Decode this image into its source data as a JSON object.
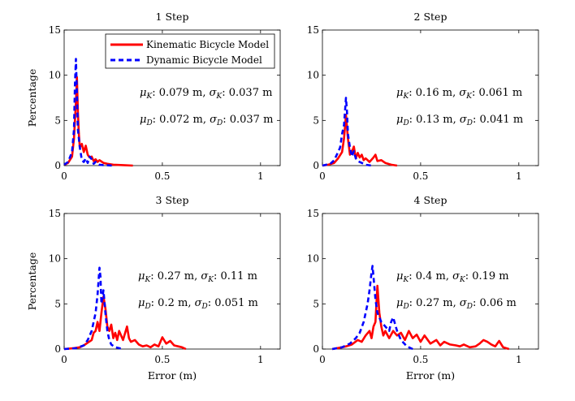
{
  "chart_data": [
    {
      "type": "line",
      "title": "1 Step",
      "xlabel": "",
      "ylabel": "Percentage",
      "xlim": [
        0,
        1.1
      ],
      "ylim": [
        0,
        15
      ],
      "x_ticks": [
        "0",
        "0.5",
        "1"
      ],
      "y_ticks": [
        "0",
        "5",
        "10",
        "15"
      ],
      "legend": {
        "placement": "top-right",
        "entries": [
          "Kinematic Bicycle Model",
          "Dynamic Bicycle Model"
        ]
      },
      "annotations": [
        {
          "sym": "μ",
          "sub": "K",
          "mid": ": 0.079 m, ",
          "sym2": "σ",
          "sub2": "K",
          "end": ": 0.037 m"
        },
        {
          "sym": "μ",
          "sub": "D",
          "mid": ": 0.072 m, ",
          "sym2": "σ",
          "sub2": "D",
          "end": ": 0.037 m"
        }
      ],
      "series": [
        {
          "name": "Kinematic Bicycle Model",
          "style": "solid",
          "color": "#ff0000",
          "x": [
            0.0,
            0.02,
            0.04,
            0.05,
            0.06,
            0.065,
            0.07,
            0.075,
            0.08,
            0.09,
            0.1,
            0.11,
            0.12,
            0.13,
            0.14,
            0.15,
            0.16,
            0.17,
            0.18,
            0.2,
            0.22,
            0.25,
            0.3,
            0.35
          ],
          "y": [
            0.1,
            0.3,
            1.0,
            3.0,
            7.0,
            9.8,
            6.0,
            3.5,
            2.0,
            2.4,
            1.5,
            2.2,
            1.2,
            0.9,
            1.0,
            0.5,
            0.7,
            0.4,
            0.6,
            0.3,
            0.2,
            0.1,
            0.05,
            0.0
          ]
        },
        {
          "name": "Dynamic Bicycle Model",
          "style": "dashed",
          "color": "#0000ff",
          "x": [
            0.0,
            0.02,
            0.04,
            0.05,
            0.055,
            0.06,
            0.065,
            0.07,
            0.08,
            0.09,
            0.1,
            0.11,
            0.12,
            0.13,
            0.14,
            0.15,
            0.16,
            0.18,
            0.2,
            0.25
          ],
          "y": [
            0.1,
            0.4,
            1.5,
            4.0,
            9.0,
            11.8,
            8.0,
            4.0,
            2.0,
            0.6,
            0.4,
            0.8,
            0.3,
            1.0,
            0.7,
            0.2,
            0.4,
            0.1,
            0.05,
            0.0
          ]
        }
      ]
    },
    {
      "type": "line",
      "title": "2 Step",
      "xlabel": "",
      "ylabel": "",
      "xlim": [
        0,
        1.1
      ],
      "ylim": [
        0,
        15
      ],
      "x_ticks": [
        "0",
        "0.5",
        "1"
      ],
      "y_ticks": [
        "0",
        "5",
        "10",
        "15"
      ],
      "annotations": [
        {
          "sym": "μ",
          "sub": "K",
          "mid": ": 0.16 m, ",
          "sym2": "σ",
          "sub2": "K",
          "end": ": 0.061 m"
        },
        {
          "sym": "μ",
          "sub": "D",
          "mid": ": 0.13 m, ",
          "sym2": "σ",
          "sub2": "D",
          "end": ": 0.041 m"
        }
      ],
      "series": [
        {
          "name": "Kinematic Bicycle Model",
          "style": "solid",
          "color": "#ff0000",
          "x": [
            0.0,
            0.03,
            0.06,
            0.08,
            0.1,
            0.11,
            0.12,
            0.13,
            0.14,
            0.15,
            0.16,
            0.17,
            0.18,
            0.19,
            0.2,
            0.21,
            0.22,
            0.24,
            0.26,
            0.27,
            0.28,
            0.3,
            0.32,
            0.35,
            0.38
          ],
          "y": [
            0.0,
            0.1,
            0.3,
            0.8,
            1.5,
            3.0,
            5.6,
            3.0,
            1.2,
            1.5,
            2.1,
            0.8,
            1.4,
            0.9,
            1.2,
            0.6,
            0.8,
            0.4,
            0.9,
            1.2,
            0.5,
            0.6,
            0.3,
            0.1,
            0.0
          ]
        },
        {
          "name": "Dynamic Bicycle Model",
          "style": "dashed",
          "color": "#0000ff",
          "x": [
            0.0,
            0.04,
            0.06,
            0.08,
            0.09,
            0.1,
            0.11,
            0.12,
            0.125,
            0.13,
            0.14,
            0.15,
            0.16,
            0.17,
            0.18,
            0.2,
            0.22,
            0.25
          ],
          "y": [
            0.0,
            0.2,
            0.6,
            1.5,
            2.0,
            3.5,
            4.5,
            7.5,
            6.0,
            3.5,
            2.0,
            1.0,
            1.6,
            0.8,
            0.5,
            0.3,
            0.1,
            0.0
          ]
        }
      ]
    },
    {
      "type": "line",
      "title": "3 Step",
      "xlabel": "Error (m)",
      "ylabel": "Percentage",
      "xlim": [
        0,
        1.1
      ],
      "ylim": [
        0,
        15
      ],
      "x_ticks": [
        "0",
        "0.5",
        "1"
      ],
      "y_ticks": [
        "0",
        "5",
        "10",
        "15"
      ],
      "annotations": [
        {
          "sym": "μ",
          "sub": "K",
          "mid": ": 0.27 m, ",
          "sym2": "σ",
          "sub2": "K",
          "end": ": 0.11 m"
        },
        {
          "sym": "μ",
          "sub": "D",
          "mid": ": 0.2 m, ",
          "sym2": "σ",
          "sub2": "D",
          "end": ": 0.051 m"
        }
      ],
      "series": [
        {
          "name": "Kinematic Bicycle Model",
          "style": "solid",
          "color": "#ff0000",
          "x": [
            0.0,
            0.05,
            0.08,
            0.1,
            0.12,
            0.14,
            0.15,
            0.16,
            0.17,
            0.18,
            0.19,
            0.2,
            0.21,
            0.22,
            0.23,
            0.24,
            0.25,
            0.26,
            0.27,
            0.28,
            0.3,
            0.32,
            0.33,
            0.34,
            0.36,
            0.38,
            0.4,
            0.42,
            0.44,
            0.46,
            0.48,
            0.5,
            0.52,
            0.54,
            0.56,
            0.58,
            0.6,
            0.62
          ],
          "y": [
            0.0,
            0.1,
            0.2,
            0.4,
            0.7,
            1.0,
            1.8,
            2.0,
            3.0,
            2.0,
            4.0,
            5.8,
            4.5,
            2.5,
            2.0,
            2.7,
            1.2,
            1.8,
            1.0,
            2.0,
            1.0,
            2.5,
            1.2,
            0.8,
            1.0,
            0.5,
            0.3,
            0.4,
            0.2,
            0.5,
            0.3,
            1.3,
            0.6,
            0.9,
            0.4,
            0.3,
            0.2,
            0.0
          ]
        },
        {
          "name": "Dynamic Bicycle Model",
          "style": "dashed",
          "color": "#0000ff",
          "x": [
            0.0,
            0.06,
            0.1,
            0.12,
            0.14,
            0.15,
            0.16,
            0.17,
            0.18,
            0.185,
            0.19,
            0.2,
            0.21,
            0.22,
            0.23,
            0.24,
            0.26,
            0.28,
            0.3
          ],
          "y": [
            0.0,
            0.1,
            0.4,
            1.0,
            2.0,
            3.0,
            4.0,
            6.0,
            9.0,
            8.0,
            5.0,
            6.5,
            4.0,
            2.0,
            1.0,
            0.5,
            0.2,
            0.1,
            0.0
          ]
        }
      ]
    },
    {
      "type": "line",
      "title": "4 Step",
      "xlabel": "Error (m)",
      "ylabel": "",
      "xlim": [
        0,
        1.1
      ],
      "ylim": [
        0,
        15
      ],
      "x_ticks": [
        "0",
        "0.5",
        "1"
      ],
      "y_ticks": [
        "0",
        "5",
        "10",
        "15"
      ],
      "annotations": [
        {
          "sym": "μ",
          "sub": "K",
          "mid": ": 0.4 m, ",
          "sym2": "σ",
          "sub2": "K",
          "end": ": 0.19 m"
        },
        {
          "sym": "μ",
          "sub": "D",
          "mid": ": 0.27 m, ",
          "sym2": "σ",
          "sub2": "D",
          "end": ": 0.06 m"
        }
      ],
      "series": [
        {
          "name": "Kinematic Bicycle Model",
          "style": "solid",
          "color": "#ff0000",
          "x": [
            0.05,
            0.1,
            0.12,
            0.15,
            0.18,
            0.2,
            0.22,
            0.24,
            0.25,
            0.26,
            0.27,
            0.28,
            0.29,
            0.3,
            0.31,
            0.32,
            0.34,
            0.36,
            0.38,
            0.4,
            0.42,
            0.44,
            0.46,
            0.48,
            0.5,
            0.52,
            0.55,
            0.58,
            0.6,
            0.62,
            0.65,
            0.68,
            0.7,
            0.72,
            0.75,
            0.78,
            0.8,
            0.82,
            0.84,
            0.86,
            0.88,
            0.9,
            0.92,
            0.95
          ],
          "y": [
            0.0,
            0.2,
            0.3,
            0.5,
            1.0,
            0.8,
            1.5,
            2.0,
            1.2,
            2.5,
            3.0,
            7.0,
            4.0,
            2.5,
            1.5,
            2.0,
            1.2,
            2.0,
            1.5,
            1.8,
            1.0,
            2.0,
            1.2,
            1.6,
            0.8,
            1.5,
            0.6,
            1.0,
            0.4,
            0.8,
            0.5,
            0.4,
            0.3,
            0.5,
            0.2,
            0.3,
            0.6,
            1.0,
            0.8,
            0.5,
            0.3,
            0.9,
            0.2,
            0.0
          ]
        },
        {
          "name": "Dynamic Bicycle Model",
          "style": "dashed",
          "color": "#0000ff",
          "x": [
            0.05,
            0.1,
            0.14,
            0.17,
            0.19,
            0.21,
            0.22,
            0.23,
            0.24,
            0.25,
            0.255,
            0.26,
            0.27,
            0.28,
            0.3,
            0.32,
            0.34,
            0.35,
            0.36,
            0.38,
            0.4,
            0.43,
            0.46
          ],
          "y": [
            0.0,
            0.2,
            0.6,
            1.2,
            1.8,
            3.0,
            4.0,
            5.0,
            6.5,
            8.5,
            9.2,
            8.0,
            5.5,
            4.0,
            3.0,
            2.5,
            2.0,
            3.0,
            3.5,
            2.0,
            1.0,
            0.3,
            0.0
          ]
        }
      ]
    }
  ]
}
